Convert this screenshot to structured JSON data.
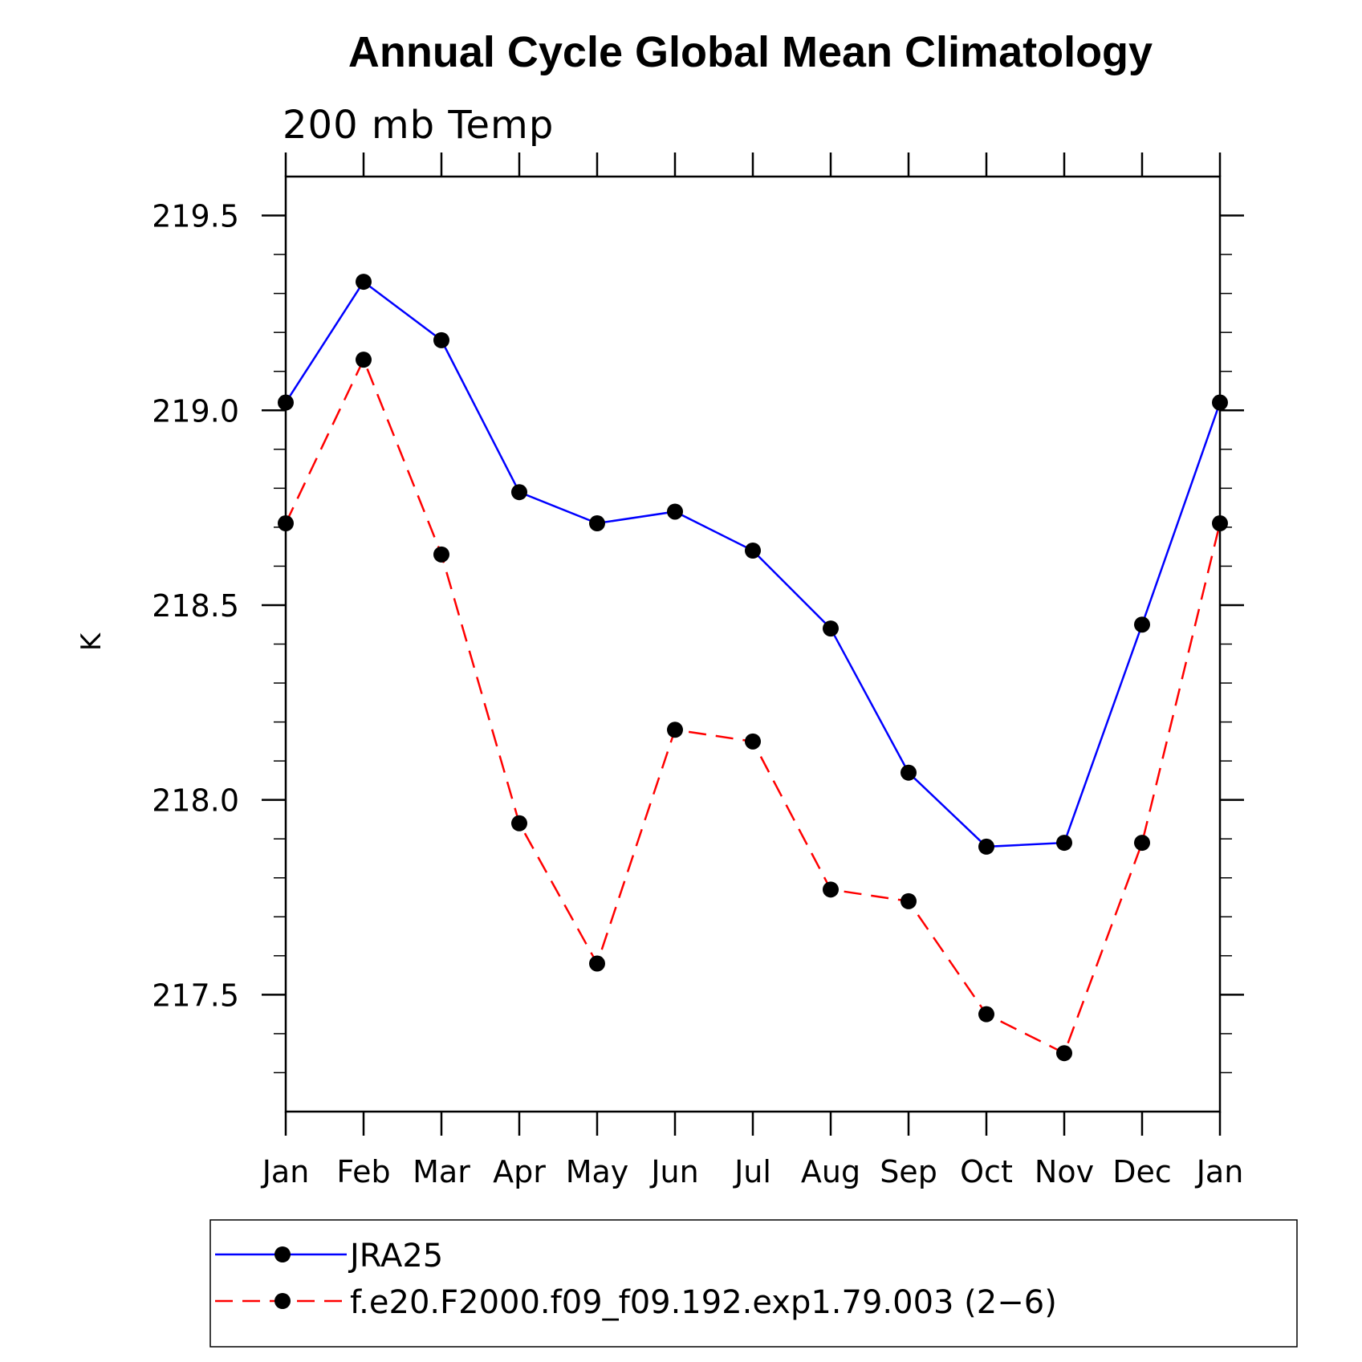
{
  "chart_data": {
    "type": "line",
    "title": "Annual Cycle Global Mean Climatology",
    "subtitle": "200  mb  Temp",
    "xlabel": "",
    "ylabel": "K",
    "categories": [
      "Jan",
      "Feb",
      "Mar",
      "Apr",
      "May",
      "Jun",
      "Jul",
      "Aug",
      "Sep",
      "Oct",
      "Nov",
      "Dec",
      "Jan"
    ],
    "ylim": [
      217.2,
      219.6
    ],
    "yticks": [
      217.5,
      218.0,
      218.5,
      219.0,
      219.5
    ],
    "ytick_labels": [
      "217.5",
      "218.0",
      "218.5",
      "219.0",
      "219.5"
    ],
    "grid": false,
    "legend_position": "bottom",
    "series": [
      {
        "name": "JRA25",
        "color": "#0000ff",
        "dash": "solid",
        "marker": "filled-circle",
        "values": [
          219.02,
          219.33,
          219.18,
          218.79,
          218.71,
          218.74,
          218.64,
          218.44,
          218.07,
          217.88,
          217.89,
          218.45,
          219.02
        ]
      },
      {
        "name": "f.e20.F2000.f09_f09.192.exp1.79.003 (2−6)",
        "color": "#ff0000",
        "dash": "dashed",
        "marker": "filled-circle",
        "values": [
          218.71,
          219.13,
          218.63,
          217.94,
          217.58,
          218.18,
          218.15,
          217.77,
          217.74,
          217.45,
          217.35,
          217.89,
          218.71
        ]
      }
    ]
  }
}
